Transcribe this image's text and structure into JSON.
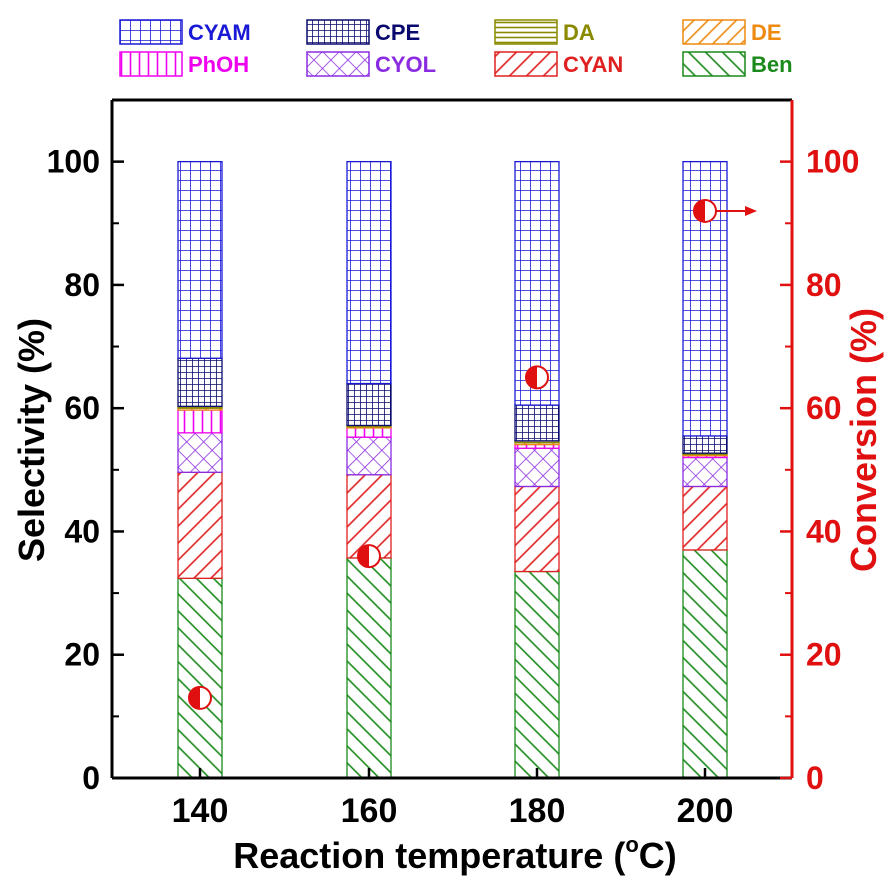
{
  "chart_data": {
    "type": "bar",
    "stacked": true,
    "secondary_type": "scatter",
    "title": "",
    "xlabel": "Reaction temperature (°C)",
    "xlabel_parts": {
      "main": "Reaction temperature (",
      "sup": "o",
      "end": "C)"
    },
    "ylabel": "Selectivity (%)",
    "y2label": "Conversion (%)",
    "categories": [
      "140",
      "160",
      "180",
      "200"
    ],
    "ylim": [
      0,
      110
    ],
    "y2lim": [
      0,
      110
    ],
    "yticks": [
      "0",
      "20",
      "40",
      "60",
      "80",
      "100"
    ],
    "y2ticks": [
      "0",
      "20",
      "40",
      "60",
      "80",
      "100"
    ],
    "grid": false,
    "legend_position": "top",
    "series": [
      {
        "name": "Ben",
        "color": "#1a8a1a",
        "pattern": "diag-back",
        "values": [
          32.4,
          35.7,
          33.5,
          37.0
        ]
      },
      {
        "name": "CYAN",
        "color": "#e02020",
        "pattern": "diag-fwd",
        "values": [
          17.2,
          13.5,
          13.8,
          10.3
        ]
      },
      {
        "name": "CYOL",
        "color": "#8a2be2",
        "pattern": "crosshatch",
        "values": [
          6.4,
          6.1,
          6.2,
          4.7
        ]
      },
      {
        "name": "PhOH",
        "color": "#ee00ee",
        "pattern": "vertical",
        "values": [
          3.7,
          1.5,
          0.6,
          0.3
        ]
      },
      {
        "name": "DE",
        "color": "#ee8a10",
        "pattern": "diag-fwd",
        "values": [
          0.3,
          0.2,
          0.3,
          0.2
        ]
      },
      {
        "name": "DA",
        "color": "#8a8a00",
        "pattern": "horizontal",
        "values": [
          0.3,
          0.2,
          0.3,
          0.2
        ]
      },
      {
        "name": "CPE",
        "color": "#0a0a6e",
        "pattern": "fine-grid",
        "values": [
          7.8,
          6.8,
          5.8,
          2.8
        ]
      },
      {
        "name": "CYAM",
        "color": "#1a1ad6",
        "pattern": "grid",
        "values": [
          31.9,
          36.0,
          39.5,
          44.5
        ]
      }
    ],
    "legend_order": [
      "CYAM",
      "CPE",
      "DA",
      "DE",
      "PhOH",
      "CYOL",
      "CYAN",
      "Ben"
    ],
    "conversion": {
      "values": [
        13.0,
        36.0,
        65.0,
        92.0
      ],
      "color": "#e01010"
    },
    "colors": {
      "right_axis": "#e01010",
      "left_axis": "#000000"
    }
  }
}
